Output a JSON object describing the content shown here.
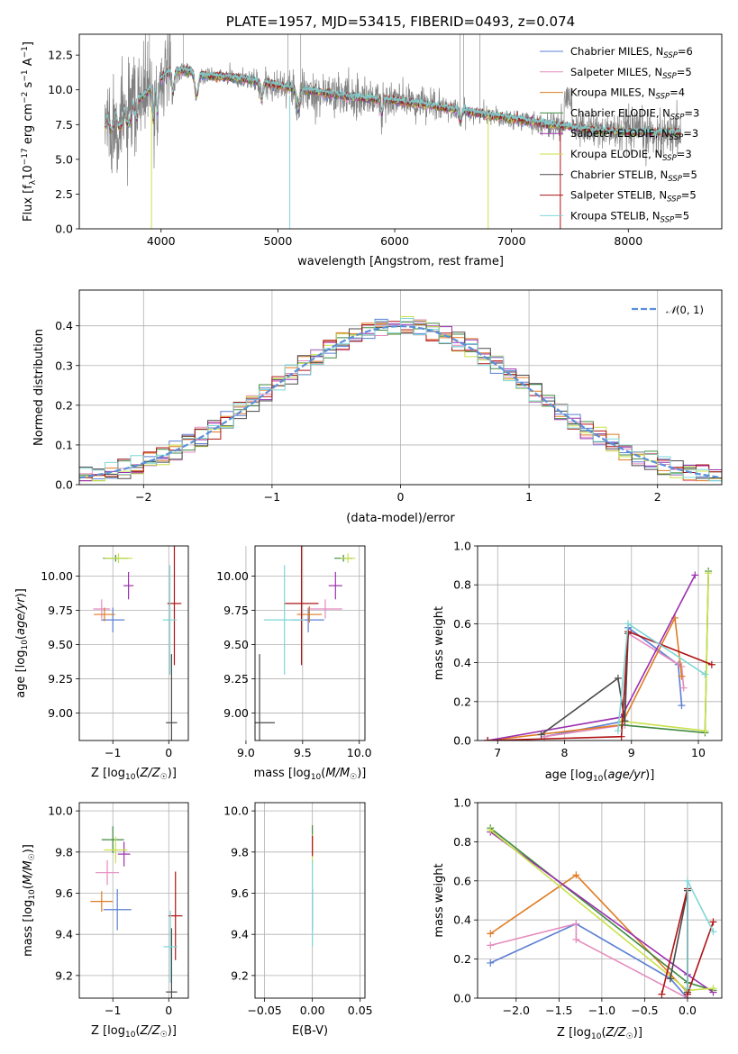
{
  "figure_title": "PLATE=1957, MJD=53415, FIBERID=0493, z=0.074",
  "colors": {
    "Chabrier MILES": "#5b7fd4",
    "Salpeter MILES": "#e58bbf",
    "Kroupa MILES": "#e07b22",
    "Chabrier ELODIE": "#3f8a3f",
    "Salpeter ELODIE": "#9b30b0",
    "Kroupa ELODIE": "#c9e14a",
    "Chabrier STELIB": "#4a4a4a",
    "Salpeter STELIB": "#b01414",
    "Kroupa STELIB": "#7fd6d6",
    "spectrum": "#808080",
    "normal": "#5b8fd9"
  },
  "chart_data": [
    {
      "id": "spectrum",
      "type": "line",
      "title": "PLATE=1957, MJD=53415, FIBERID=0493, z=0.074",
      "xlabel": "wavelength [Angstrom, rest frame]",
      "ylabel": "Flux [f_λ10^-17 erg cm^-2 s^-1 A^-1]",
      "xlim": [
        3300,
        8800
      ],
      "ylim": [
        0,
        14
      ],
      "xticks": [
        4000,
        5000,
        6000,
        7000,
        8000
      ],
      "yticks": [
        0.0,
        2.5,
        5.0,
        7.5,
        10.0,
        12.5
      ],
      "legend_loc": "upper right",
      "legend": [
        {
          "model": "Chabrier MILES",
          "n": "6"
        },
        {
          "model": "Salpeter MILES",
          "n": "5"
        },
        {
          "model": "Kroupa MILES",
          "n": "4"
        },
        {
          "model": "Chabrier ELODIE",
          "n": "3"
        },
        {
          "model": "Salpeter ELODIE",
          "n": "3"
        },
        {
          "model": "Kroupa ELODIE",
          "n": "3"
        },
        {
          "model": "Chabrier STELIB",
          "n": "5"
        },
        {
          "model": "Salpeter STELIB",
          "n": "5"
        },
        {
          "model": "Kroupa STELIB",
          "n": "5"
        }
      ],
      "continuum": {
        "x": [
          3550,
          3700,
          3850,
          3950,
          4050,
          4200,
          4400,
          4700,
          5000,
          5300,
          5600,
          5900,
          6200,
          6500,
          6800,
          7100,
          7400,
          7700,
          8000,
          8300,
          8450
        ],
        "y": [
          8.2,
          8.6,
          9.6,
          10.4,
          11.2,
          11.4,
          11.0,
          10.8,
          10.3,
          9.9,
          9.5,
          9.3,
          9.0,
          8.6,
          8.2,
          7.8,
          7.4,
          7.1,
          6.9,
          6.9,
          6.9
        ]
      }
    },
    {
      "id": "residual-histogram",
      "type": "area",
      "xlabel": "(data-model)/error",
      "ylabel": "Normed distribution",
      "xlim": [
        -2.5,
        2.5
      ],
      "ylim": [
        0,
        0.49
      ],
      "xticks": [
        -2,
        -1,
        0,
        1,
        2
      ],
      "yticks": [
        0.0,
        0.1,
        0.2,
        0.3,
        0.4
      ],
      "legend": "𝒩(0, 1)",
      "legend_loc": "upper right",
      "bin_width": 0.1
    },
    {
      "id": "age-vs-Z",
      "type": "scatter",
      "xlabel": "Z [log10(Z/Z☉)]",
      "ylabel": "age [log10(age/yr)]",
      "xlim": [
        -1.6,
        0.35
      ],
      "ylim": [
        8.8,
        10.22
      ],
      "xticks": [
        -1,
        0
      ],
      "yticks": [
        9.0,
        9.25,
        9.5,
        9.75,
        10.0
      ],
      "points": [
        {
          "model": "Chabrier MILES",
          "x": -1.0,
          "xerr": 0.42,
          "y": 9.68,
          "yerr": 0.18
        },
        {
          "model": "Salpeter MILES",
          "x": -1.2,
          "xerr": 0.3,
          "y": 9.76,
          "yerr": 0.14
        },
        {
          "model": "Kroupa MILES",
          "x": -1.15,
          "xerr": 0.38,
          "y": 9.72,
          "yerr": 0.1
        },
        {
          "model": "Chabrier ELODIE",
          "x": -0.95,
          "xerr": 0.45,
          "y": 10.13,
          "yerr": 0.05
        },
        {
          "model": "Salpeter ELODIE",
          "x": -0.72,
          "xerr": 0.18,
          "y": 9.93,
          "yerr": 0.2
        },
        {
          "model": "Kroupa ELODIE",
          "x": -0.9,
          "xerr": 0.5,
          "y": 10.13,
          "yerr": 0.07
        },
        {
          "model": "Chabrier STELIB",
          "x": 0.05,
          "xerr": 0.2,
          "y": 8.93,
          "yerr": 1.0
        },
        {
          "model": "Salpeter STELIB",
          "x": 0.1,
          "xerr": 0.25,
          "y": 9.8,
          "yerr": 0.9
        },
        {
          "model": "Kroupa STELIB",
          "x": 0.02,
          "xerr": 0.25,
          "y": 9.68,
          "yerr": 0.8
        }
      ]
    },
    {
      "id": "age-vs-mass",
      "type": "scatter",
      "xlabel": "mass [log10(M/M☉)]",
      "xlim": [
        9.08,
        10.05
      ],
      "ylim": [
        8.8,
        10.22
      ],
      "xticks": [
        9.0,
        9.5,
        10.0
      ],
      "yticks": [
        9.0,
        9.25,
        9.5,
        9.75,
        10.0
      ],
      "points": [
        {
          "model": "Chabrier MILES",
          "x": 9.55,
          "xerr": 0.28,
          "y": 9.68,
          "yerr": 0.18
        },
        {
          "model": "Salpeter MILES",
          "x": 9.7,
          "xerr": 0.3,
          "y": 9.76,
          "yerr": 0.14
        },
        {
          "model": "Kroupa MILES",
          "x": 9.56,
          "xerr": 0.22,
          "y": 9.72,
          "yerr": 0.12
        },
        {
          "model": "Chabrier ELODIE",
          "x": 9.86,
          "xerr": 0.16,
          "y": 10.13,
          "yerr": 0.05
        },
        {
          "model": "Salpeter ELODIE",
          "x": 9.79,
          "xerr": 0.12,
          "y": 9.93,
          "yerr": 0.2
        },
        {
          "model": "Kroupa ELODIE",
          "x": 9.9,
          "xerr": 0.13,
          "y": 10.13,
          "yerr": 0.07
        },
        {
          "model": "Chabrier STELIB",
          "x": 9.12,
          "xerr": 0.27,
          "y": 8.93,
          "yerr": 1.0
        },
        {
          "model": "Salpeter STELIB",
          "x": 9.49,
          "xerr": 0.3,
          "y": 9.8,
          "yerr": 0.9
        },
        {
          "model": "Kroupa STELIB",
          "x": 9.34,
          "xerr": 0.36,
          "y": 9.68,
          "yerr": 0.8
        }
      ]
    },
    {
      "id": "mass-weight-vs-age",
      "type": "line",
      "xlabel": "age [log10(age/yr)]",
      "ylabel": "mass weight",
      "xlim": [
        6.7,
        10.35
      ],
      "ylim": [
        0,
        1.0
      ],
      "xticks": [
        7,
        8,
        9,
        10
      ],
      "yticks": [
        0.0,
        0.2,
        0.4,
        0.6,
        0.8,
        1.0
      ],
      "series": [
        {
          "model": "Chabrier MILES",
          "x": [
            7.7,
            8.9,
            8.95,
            9.7,
            9.75
          ],
          "y": [
            0.02,
            0.1,
            0.58,
            0.39,
            0.18
          ]
        },
        {
          "model": "Salpeter MILES",
          "x": [
            7.7,
            8.9,
            8.95,
            9.75,
            9.78
          ],
          "y": [
            0.02,
            0.08,
            0.55,
            0.38,
            0.27
          ]
        },
        {
          "model": "Kroupa MILES",
          "x": [
            6.85,
            8.85,
            9.65,
            9.75
          ],
          "y": [
            0.0,
            0.08,
            0.63,
            0.33
          ]
        },
        {
          "model": "Chabrier ELODIE",
          "x": [
            8.85,
            10.1,
            10.15
          ],
          "y": [
            0.08,
            0.04,
            0.87
          ]
        },
        {
          "model": "Salpeter ELODIE",
          "x": [
            6.85,
            8.85,
            9.95
          ],
          "y": [
            0.0,
            0.12,
            0.85
          ]
        },
        {
          "model": "Kroupa ELODIE",
          "x": [
            8.85,
            10.1,
            10.15
          ],
          "y": [
            0.1,
            0.05,
            0.86
          ]
        },
        {
          "model": "Chabrier STELIB",
          "x": [
            7.65,
            8.8,
            8.9,
            8.95
          ],
          "y": [
            0.03,
            0.32,
            0.1,
            0.55
          ]
        },
        {
          "model": "Salpeter STELIB",
          "x": [
            6.85,
            8.85,
            8.95,
            10.2
          ],
          "y": [
            0.0,
            0.02,
            0.56,
            0.39
          ]
        },
        {
          "model": "Kroupa STELIB",
          "x": [
            8.8,
            8.95,
            10.1
          ],
          "y": [
            0.05,
            0.6,
            0.34
          ]
        }
      ]
    },
    {
      "id": "mass-vs-Z",
      "type": "scatter",
      "xlabel": "Z [log10(Z/Z☉)]",
      "ylabel": "mass [log10(M/M☉)]",
      "xlim": [
        -1.6,
        0.35
      ],
      "ylim": [
        9.09,
        10.04
      ],
      "xticks": [
        -1,
        0
      ],
      "yticks": [
        9.2,
        9.4,
        9.6,
        9.8,
        10.0
      ],
      "points": [
        {
          "model": "Chabrier MILES",
          "x": -0.92,
          "xerr": 0.5,
          "y": 9.52,
          "yerr": 0.2
        },
        {
          "model": "Salpeter MILES",
          "x": -1.1,
          "xerr": 0.42,
          "y": 9.7,
          "yerr": 0.12
        },
        {
          "model": "Kroupa MILES",
          "x": -1.2,
          "xerr": 0.4,
          "y": 9.56,
          "yerr": 0.1
        },
        {
          "model": "Chabrier ELODIE",
          "x": -1.0,
          "xerr": 0.4,
          "y": 9.86,
          "yerr": 0.13
        },
        {
          "model": "Salpeter ELODIE",
          "x": -0.8,
          "xerr": 0.22,
          "y": 9.79,
          "yerr": 0.12
        },
        {
          "model": "Kroupa ELODIE",
          "x": -0.95,
          "xerr": 0.42,
          "y": 9.81,
          "yerr": 0.13
        },
        {
          "model": "Chabrier STELIB",
          "x": 0.05,
          "xerr": 0.2,
          "y": 9.12,
          "yerr": 0.62
        },
        {
          "model": "Salpeter STELIB",
          "x": 0.12,
          "xerr": 0.25,
          "y": 9.49,
          "yerr": 0.43
        },
        {
          "model": "Kroupa STELIB",
          "x": 0.03,
          "xerr": 0.25,
          "y": 9.34,
          "yerr": 0.35
        }
      ]
    },
    {
      "id": "mass-vs-EBV",
      "type": "scatter",
      "xlabel": "E(B-V)",
      "xlim": [
        -0.06,
        0.055
      ],
      "ylim": [
        9.09,
        10.04
      ],
      "xticks": [
        -0.05,
        0.0,
        0.05
      ],
      "xtick_labels": [
        "−0.05",
        "0.00",
        "0.05"
      ],
      "yticks": [
        9.2,
        9.4,
        9.6,
        9.8,
        10.0
      ],
      "points": [
        {
          "model": "Chabrier MILES",
          "x": 0.0,
          "y": 9.52,
          "yerr": 0.2
        },
        {
          "model": "Chabrier ELODIE",
          "x": 0.0,
          "y": 9.86,
          "yerr": 0.14
        },
        {
          "model": "Kroupa ELODIE",
          "x": 0.0,
          "y": 9.81,
          "yerr": 0.15
        },
        {
          "model": "Salpeter STELIB",
          "x": 0.0,
          "y": 9.83,
          "yerr": 0.1
        },
        {
          "model": "Kroupa STELIB",
          "x": 0.0,
          "y": 9.55,
          "yerr": 0.42
        }
      ]
    },
    {
      "id": "mass-weight-vs-Z",
      "type": "line",
      "xlabel": "Z [log10(Z/Z☉)]",
      "ylabel": "mass weight",
      "xlim": [
        -2.45,
        0.4
      ],
      "ylim": [
        0,
        1.0
      ],
      "xticks": [
        -2.0,
        -1.5,
        -1.0,
        -0.5,
        0.0
      ],
      "yticks": [
        0.0,
        0.2,
        0.4,
        0.6,
        0.8,
        1.0
      ],
      "series": [
        {
          "model": "Chabrier MILES",
          "x": [
            -2.3,
            -1.3,
            -0.2,
            0.0
          ],
          "y": [
            0.18,
            0.38,
            0.1,
            0.0
          ]
        },
        {
          "model": "Salpeter MILES",
          "x": [
            -2.3,
            -1.3,
            -1.3,
            0.0
          ],
          "y": [
            0.27,
            0.38,
            0.3,
            0.0
          ]
        },
        {
          "model": "Kroupa MILES",
          "x": [
            -2.3,
            -1.3,
            0.0
          ],
          "y": [
            0.33,
            0.63,
            0.03
          ]
        },
        {
          "model": "Chabrier ELODIE",
          "x": [
            -2.3,
            0.0,
            0.3
          ],
          "y": [
            0.87,
            0.08,
            0.04
          ]
        },
        {
          "model": "Salpeter ELODIE",
          "x": [
            -2.3,
            0.0,
            0.3
          ],
          "y": [
            0.85,
            0.12,
            0.03
          ]
        },
        {
          "model": "Kroupa ELODIE",
          "x": [
            -2.3,
            0.0,
            0.3
          ],
          "y": [
            0.86,
            0.04,
            0.05
          ]
        },
        {
          "model": "Chabrier STELIB",
          "x": [
            -0.2,
            0.0,
            0.0
          ],
          "y": [
            0.1,
            0.55,
            0.03
          ]
        },
        {
          "model": "Salpeter STELIB",
          "x": [
            -0.3,
            0.0,
            0.0,
            0.3
          ],
          "y": [
            0.02,
            0.56,
            0.02,
            0.39
          ]
        },
        {
          "model": "Kroupa STELIB",
          "x": [
            0.0,
            0.0,
            0.3
          ],
          "y": [
            0.05,
            0.6,
            0.34
          ]
        }
      ]
    }
  ]
}
